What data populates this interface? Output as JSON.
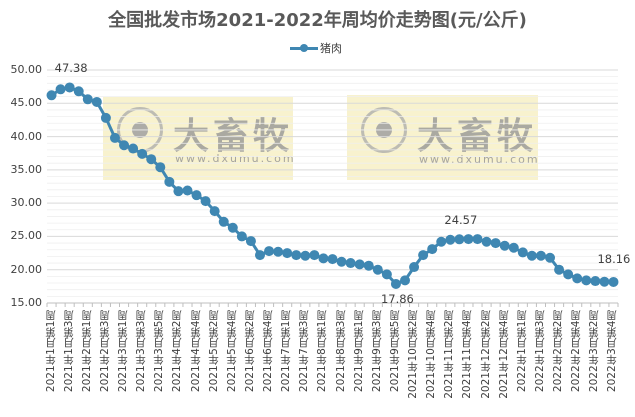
{
  "chart_data": {
    "type": "line",
    "title": "全国批发市场2021-2022年周均价走势图(元/公斤)",
    "xlabel": "",
    "ylabel": "",
    "ylim": [
      15,
      50
    ],
    "yticks": [
      "50.00",
      "45.00",
      "40.00",
      "35.00",
      "30.00",
      "25.00",
      "20.00",
      "15.00"
    ],
    "grid": true,
    "legend_position": "top",
    "categories_labeled": [
      "2021年1月第1周",
      "2021年1月第3周",
      "2021年2月第1周",
      "2021年2月第3周",
      "2021年3月第1周",
      "2021年3月第3周",
      "2021年3月第5周",
      "2021年4月第2周",
      "2021年4月第4周",
      "2021年5月第2周",
      "2021年5月第4周",
      "2021年6月第2周",
      "2021年6月第4周",
      "2021年7月第1周",
      "2021年7月第3周",
      "2021年8月第1周",
      "2021年8月第3周",
      "2021年9月第1周",
      "2021年9月第3周",
      "2021年9月第5周",
      "2021年10月第2周",
      "2021年10月第4周",
      "2021年11月第2周",
      "2021年11月第4周",
      "2021年12月第2周",
      "2021年12月第4周",
      "2022年1月第1周",
      "2022年1月第3周",
      "2022年2月第2周",
      "2022年2月第4周",
      "2022年3月第2周",
      "2022年3月第4周"
    ],
    "series": [
      {
        "name": "猪肉",
        "color": "#3f87b2",
        "values": [
          46.2,
          47.1,
          47.38,
          46.8,
          45.6,
          45.2,
          42.8,
          39.8,
          38.7,
          38.2,
          37.4,
          36.6,
          35.4,
          33.2,
          31.8,
          31.9,
          31.2,
          30.3,
          28.8,
          27.2,
          26.3,
          25.0,
          24.3,
          22.2,
          22.8,
          22.7,
          22.5,
          22.2,
          22.1,
          22.2,
          21.7,
          21.6,
          21.2,
          21.0,
          20.8,
          20.6,
          20.0,
          19.3,
          17.86,
          18.4,
          20.4,
          22.2,
          23.1,
          24.2,
          24.5,
          24.57,
          24.6,
          24.6,
          24.2,
          24.0,
          23.6,
          23.3,
          22.6,
          22.1,
          22.1,
          21.8,
          20.0,
          19.3,
          18.7,
          18.4,
          18.3,
          18.2,
          18.16
        ]
      }
    ],
    "annotations": [
      {
        "index": 2,
        "text": "47.38"
      },
      {
        "index": 38,
        "text": "17.86"
      },
      {
        "index": 45,
        "text": "24.57"
      },
      {
        "index": 62,
        "text": "18.16"
      }
    ]
  },
  "legend": {
    "label": "猪肉"
  },
  "watermark": {
    "brand": "大畜牧",
    "url": "www.dxumu.com"
  }
}
